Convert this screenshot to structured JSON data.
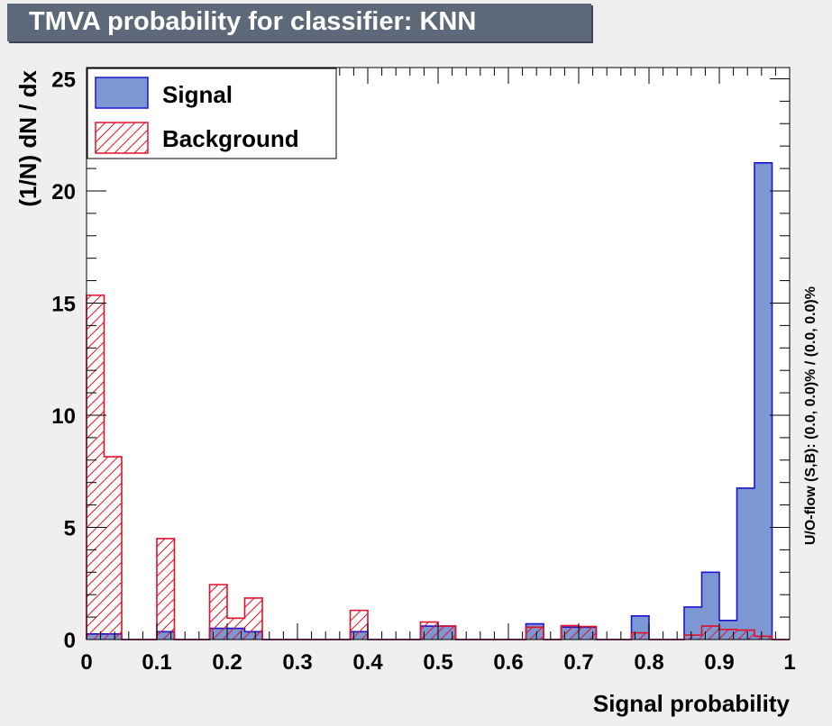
{
  "title": "TMVA probability for classifier: KNN",
  "colors": {
    "signal_fill": "#7d97d2",
    "signal_line": "#1c14cf",
    "background_line": "#e0122a",
    "header_bg": "#5d6979",
    "page_bg": "#efefef"
  },
  "chart_data": {
    "type": "histogram",
    "xlabel": "Signal probability",
    "ylabel": "(1/N) dN / dx",
    "xlim": [
      0,
      1
    ],
    "ylim": [
      0,
      25.5
    ],
    "bins": 40,
    "x_ticks": [
      "0",
      "0.1",
      "0.2",
      "0.3",
      "0.4",
      "0.5",
      "0.6",
      "0.7",
      "0.8",
      "0.9",
      "1"
    ],
    "y_ticks": [
      "0",
      "5",
      "10",
      "15",
      "20",
      "25"
    ],
    "legend_position": "top-left",
    "overflow_label": "U/O-flow (S,B): (0.0, 0.0)% / (0.0, 0.0)%",
    "series": [
      {
        "name": "Signal",
        "style": "solid-fill",
        "values": [
          0.25,
          0.25,
          0,
          0,
          0.35,
          0,
          0,
          0.5,
          0.5,
          0.35,
          0,
          0,
          0,
          0,
          0,
          0.35,
          0,
          0,
          0,
          0.6,
          0.6,
          0,
          0,
          0,
          0,
          0.7,
          0,
          0.55,
          0.55,
          0,
          0,
          1.05,
          0,
          0,
          1.45,
          3.0,
          0.85,
          6.75,
          21.25,
          0
        ]
      },
      {
        "name": "Background",
        "style": "hatched",
        "values": [
          15.35,
          8.15,
          0,
          0,
          4.5,
          0,
          0,
          2.45,
          0.95,
          1.85,
          0,
          0,
          0,
          0,
          0,
          1.3,
          0,
          0,
          0,
          0.78,
          0.6,
          0,
          0,
          0,
          0,
          0.55,
          0,
          0.62,
          0.58,
          0,
          0,
          0.3,
          0,
          0,
          0.2,
          0.6,
          0.45,
          0.42,
          0.15,
          0
        ]
      }
    ]
  }
}
